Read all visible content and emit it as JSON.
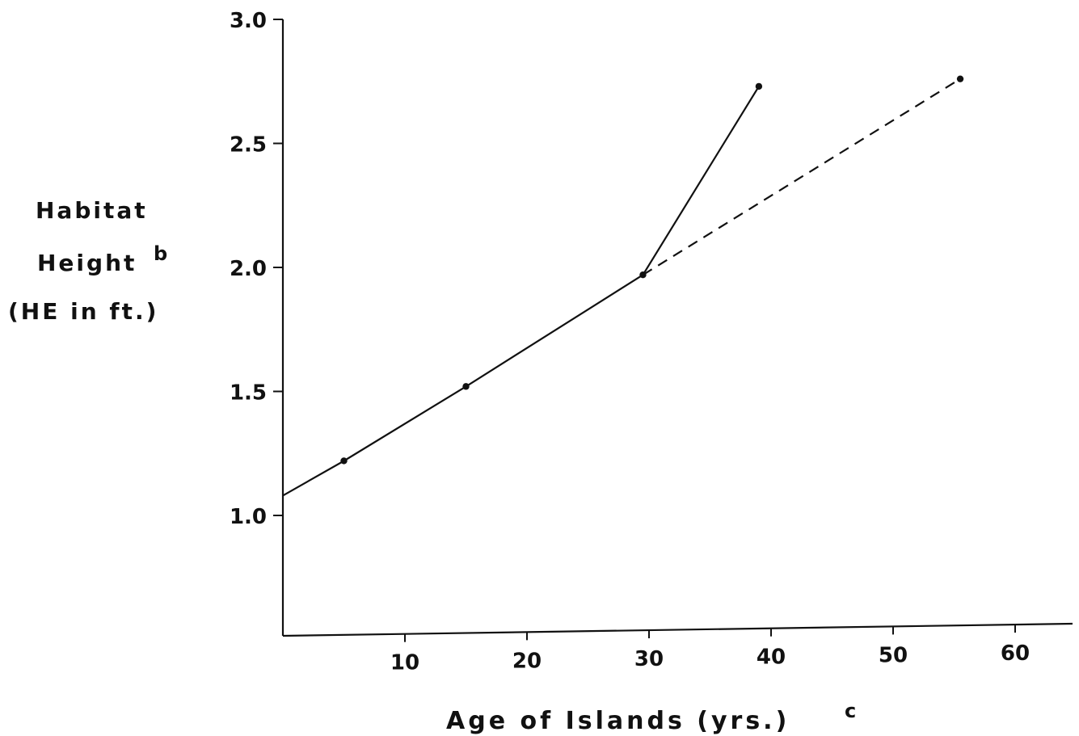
{
  "chart_data": {
    "type": "line",
    "title": "",
    "xlabel": "Age of Islands (yrs.)",
    "xlabel_superscript": "c",
    "ylabel_lines": [
      "Habitat",
      "Height",
      "(HE in ft.)"
    ],
    "ylabel_superscript": "b",
    "xlim": [
      0,
      65
    ],
    "ylim": [
      0.4,
      3.0
    ],
    "x_ticks": [
      10,
      20,
      30,
      40,
      50,
      60
    ],
    "y_ticks": [
      1.0,
      1.5,
      2.0,
      2.5,
      3.0
    ],
    "x_tick_labels": [
      "10",
      "20",
      "30",
      "40",
      "50",
      "60"
    ],
    "y_tick_labels": [
      "1.0",
      "1.5",
      "2.0",
      "2.5",
      "3.0"
    ],
    "grid": false,
    "series": [
      {
        "style": "solid",
        "x": [
          0,
          5,
          15,
          29.5,
          39
        ],
        "y": [
          1.08,
          1.22,
          1.52,
          1.97,
          2.73
        ],
        "markers": [
          false,
          true,
          true,
          true,
          true
        ]
      },
      {
        "style": "dashed",
        "x": [
          29.5,
          55.5
        ],
        "y": [
          1.97,
          2.76
        ],
        "markers": [
          false,
          true
        ]
      }
    ]
  }
}
